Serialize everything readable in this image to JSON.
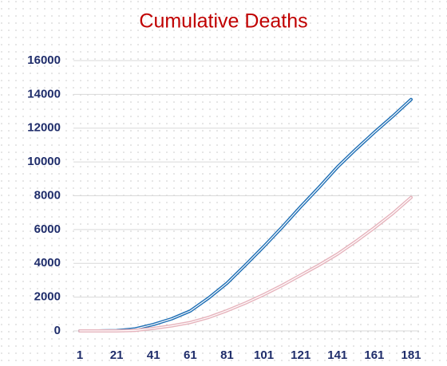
{
  "chart_data": {
    "type": "line",
    "title": "Cumulative Deaths",
    "x": [
      1,
      11,
      21,
      31,
      41,
      51,
      61,
      71,
      81,
      91,
      101,
      111,
      121,
      131,
      141,
      151,
      161,
      171,
      181
    ],
    "series": [
      {
        "color": "#1f6fb5",
        "values": [
          0,
          0,
          20,
          120,
          380,
          720,
          1180,
          1950,
          2830,
          3900,
          5000,
          6150,
          7350,
          8500,
          9700,
          10750,
          11750,
          12700,
          13700
        ]
      },
      {
        "color": "#e6b3bc",
        "values": [
          0,
          0,
          0,
          30,
          150,
          300,
          500,
          800,
          1200,
          1650,
          2150,
          2700,
          3300,
          3900,
          4550,
          5300,
          6100,
          6950,
          7900
        ]
      }
    ],
    "xlim": [
      1,
      181
    ],
    "xticks": [
      1,
      21,
      41,
      61,
      81,
      101,
      121,
      141,
      161,
      181
    ],
    "ylim": [
      0,
      16000
    ],
    "yticks": [
      0,
      2000,
      4000,
      6000,
      8000,
      10000,
      12000,
      14000,
      16000
    ],
    "grid": true
  }
}
